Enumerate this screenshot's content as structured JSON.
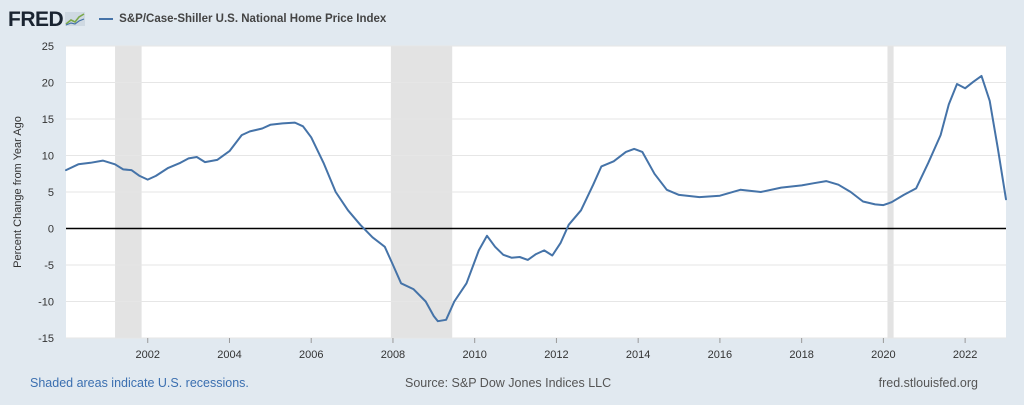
{
  "logo": {
    "text": "FRED",
    "icon": "chart-line-icon"
  },
  "colors": {
    "series": "#4573a8",
    "recession": "#e3e3e3",
    "background": "#e1e9f0",
    "plot": "#ffffff",
    "zero_line": "#000000",
    "footer_link": "#3b6fb0"
  },
  "footer": {
    "note": "Shaded areas indicate U.S. recessions.",
    "source": "Source: S&P Dow Jones Indices LLC",
    "site": "fred.stlouisfed.org"
  },
  "chart_data": {
    "type": "line",
    "title": "",
    "ylabel": "Percent Change from Year Ago",
    "xlabel": "",
    "xlim": [
      2000.0,
      2023.0
    ],
    "ylim": [
      -15,
      25
    ],
    "y_ticks": [
      25,
      20,
      15,
      10,
      5,
      0,
      -5,
      -10,
      -15
    ],
    "x_ticks": [
      2002,
      2004,
      2006,
      2008,
      2010,
      2012,
      2014,
      2016,
      2018,
      2020,
      2022
    ],
    "grid": "horizontal",
    "reference_line": 0,
    "recessions": [
      [
        2001.2,
        2001.85
      ],
      [
        2007.95,
        2009.45
      ],
      [
        2020.1,
        2020.25
      ]
    ],
    "series": [
      {
        "name": "S&P/Case-Shiller U.S. National Home Price Index",
        "x": [
          2000.0,
          2000.3,
          2000.6,
          2000.9,
          2001.2,
          2001.4,
          2001.6,
          2001.8,
          2002.0,
          2002.2,
          2002.5,
          2002.8,
          2003.0,
          2003.2,
          2003.4,
          2003.7,
          2004.0,
          2004.3,
          2004.5,
          2004.8,
          2005.0,
          2005.3,
          2005.6,
          2005.8,
          2006.0,
          2006.3,
          2006.6,
          2006.9,
          2007.2,
          2007.5,
          2007.8,
          2008.0,
          2008.2,
          2008.5,
          2008.8,
          2009.0,
          2009.1,
          2009.3,
          2009.5,
          2009.8,
          2010.0,
          2010.1,
          2010.3,
          2010.5,
          2010.7,
          2010.9,
          2011.1,
          2011.3,
          2011.5,
          2011.7,
          2011.9,
          2012.1,
          2012.3,
          2012.6,
          2012.9,
          2013.1,
          2013.4,
          2013.7,
          2013.9,
          2014.1,
          2014.4,
          2014.7,
          2015.0,
          2015.5,
          2016.0,
          2016.5,
          2017.0,
          2017.5,
          2018.0,
          2018.3,
          2018.6,
          2018.9,
          2019.2,
          2019.5,
          2019.8,
          2020.0,
          2020.2,
          2020.5,
          2020.8,
          2021.1,
          2021.4,
          2021.6,
          2021.8,
          2022.0,
          2022.2,
          2022.4,
          2022.6,
          2022.8,
          2023.0
        ],
        "values": [
          8.0,
          8.8,
          9.0,
          9.3,
          8.8,
          8.1,
          8.0,
          7.2,
          6.7,
          7.2,
          8.3,
          9.0,
          9.6,
          9.8,
          9.1,
          9.4,
          10.6,
          12.8,
          13.3,
          13.7,
          14.2,
          14.4,
          14.5,
          14.0,
          12.5,
          9.0,
          5.0,
          2.5,
          0.5,
          -1.2,
          -2.5,
          -5.0,
          -7.5,
          -8.3,
          -10.0,
          -12.0,
          -12.7,
          -12.5,
          -10.0,
          -7.5,
          -4.5,
          -3.0,
          -1.0,
          -2.5,
          -3.6,
          -4.0,
          -3.9,
          -4.3,
          -3.5,
          -3.0,
          -3.7,
          -2.0,
          0.5,
          2.5,
          6.0,
          8.5,
          9.2,
          10.5,
          10.9,
          10.5,
          7.5,
          5.3,
          4.6,
          4.3,
          4.5,
          5.3,
          5.0,
          5.6,
          5.9,
          6.2,
          6.5,
          6.0,
          5.0,
          3.7,
          3.3,
          3.2,
          3.6,
          4.6,
          5.5,
          9.0,
          12.8,
          17.0,
          19.8,
          19.2,
          20.1,
          20.9,
          17.5,
          11.0,
          4.0
        ]
      }
    ]
  }
}
